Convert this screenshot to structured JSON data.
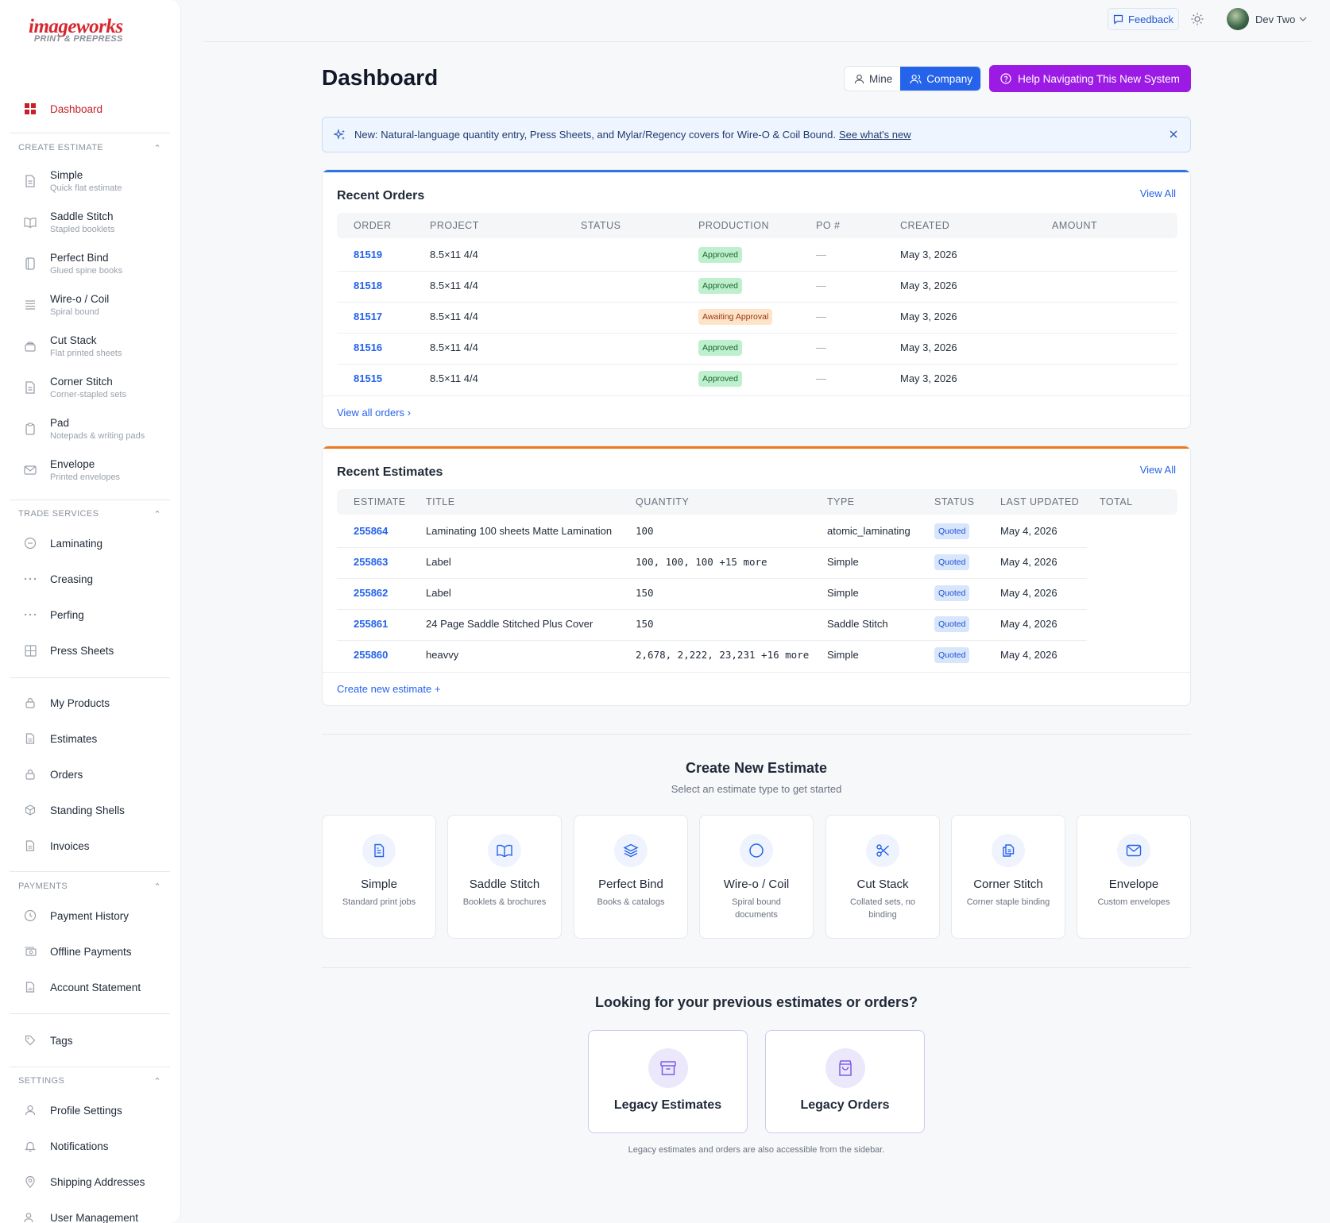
{
  "brand": {
    "line1": "imageworks",
    "line2": "PRINT & PREPRESS"
  },
  "sidebar": {
    "dashboard": "Dashboard",
    "create_estimate": {
      "header": "CREATE ESTIMATE",
      "items": [
        {
          "label": "Simple",
          "sub": "Quick flat estimate"
        },
        {
          "label": "Saddle Stitch",
          "sub": "Stapled booklets"
        },
        {
          "label": "Perfect Bind",
          "sub": "Glued spine books"
        },
        {
          "label": "Wire-o / Coil",
          "sub": "Spiral bound"
        },
        {
          "label": "Cut Stack",
          "sub": "Flat printed sheets"
        },
        {
          "label": "Corner Stitch",
          "sub": "Corner-stapled sets"
        },
        {
          "label": "Pad",
          "sub": "Notepads & writing pads"
        },
        {
          "label": "Envelope",
          "sub": "Printed envelopes"
        }
      ]
    },
    "trade_services": {
      "header": "TRADE SERVICES",
      "items": [
        {
          "label": "Laminating"
        },
        {
          "label": "Creasing"
        },
        {
          "label": "Perfing"
        },
        {
          "label": "Press Sheets"
        }
      ]
    },
    "main_links": [
      {
        "label": "My Products"
      },
      {
        "label": "Estimates"
      },
      {
        "label": "Orders"
      },
      {
        "label": "Standing Shells"
      },
      {
        "label": "Invoices"
      }
    ],
    "payments": {
      "header": "PAYMENTS",
      "items": [
        {
          "label": "Payment History"
        },
        {
          "label": "Offline Payments"
        },
        {
          "label": "Account Statement"
        }
      ]
    },
    "tags": "Tags",
    "settings": {
      "header": "SETTINGS",
      "items": [
        {
          "label": "Profile Settings"
        },
        {
          "label": "Notifications"
        },
        {
          "label": "Shipping Addresses"
        },
        {
          "label": "User Management"
        }
      ]
    }
  },
  "topbar": {
    "feedback": "Feedback",
    "user_name": "Dev Two"
  },
  "header": {
    "title": "Dashboard",
    "toggle_mine": "Mine",
    "toggle_company": "Company",
    "help": "Help Navigating This New System"
  },
  "banner": {
    "text": "New: Natural-language quantity entry, Press Sheets, and Mylar/Regency covers for Wire-O & Coil Bound.",
    "link": "See what's new"
  },
  "recent_orders": {
    "title": "Recent Orders",
    "view_all": "View All",
    "columns": [
      "ORDER",
      "PROJECT",
      "STATUS",
      "PRODUCTION",
      "PO #",
      "CREATED",
      "AMOUNT"
    ],
    "rows": [
      {
        "order": "81519",
        "project": "8.5×11 4/4",
        "production": "Approved",
        "po": "—",
        "created": "May 3, 2026"
      },
      {
        "order": "81518",
        "project": "8.5×11 4/4",
        "production": "Approved",
        "po": "—",
        "created": "May 3, 2026"
      },
      {
        "order": "81517",
        "project": "8.5×11 4/4",
        "production": "Awaiting Approval",
        "po": "—",
        "created": "May 3, 2026"
      },
      {
        "order": "81516",
        "project": "8.5×11 4/4",
        "production": "Approved",
        "po": "—",
        "created": "May 3, 2026"
      },
      {
        "order": "81515",
        "project": "8.5×11 4/4",
        "production": "Approved",
        "po": "—",
        "created": "May 3, 2026"
      }
    ],
    "footer": "View all orders ›"
  },
  "recent_estimates": {
    "title": "Recent Estimates",
    "view_all": "View All",
    "columns": [
      "ESTIMATE",
      "TITLE",
      "QUANTITY",
      "TYPE",
      "STATUS",
      "LAST UPDATED",
      "TOTAL"
    ],
    "rows": [
      {
        "id": "255864",
        "title": "Laminating 100 sheets Matte Lamination",
        "qty": "100",
        "type": "atomic_laminating",
        "status": "Quoted",
        "updated": "May 4, 2026"
      },
      {
        "id": "255863",
        "title": "Label",
        "qty": "100, 100, 100 +15 more",
        "type": "Simple",
        "status": "Quoted",
        "updated": "May 4, 2026"
      },
      {
        "id": "255862",
        "title": "Label",
        "qty": "150",
        "type": "Simple",
        "status": "Quoted",
        "updated": "May 4, 2026"
      },
      {
        "id": "255861",
        "title": "24 Page Saddle Stitched Plus Cover",
        "qty": "150",
        "type": "Saddle Stitch",
        "status": "Quoted",
        "updated": "May 4, 2026"
      },
      {
        "id": "255860",
        "title": "heavvy",
        "qty": "2,678, 2,222, 23,231 +16 more",
        "type": "Simple",
        "status": "Quoted",
        "updated": "May 4, 2026"
      }
    ],
    "footer": "Create new estimate +"
  },
  "create_new": {
    "title": "Create New Estimate",
    "subtitle": "Select an estimate type to get started",
    "types": [
      {
        "label": "Simple",
        "sub": "Standard print jobs",
        "icon": "document-icon"
      },
      {
        "label": "Saddle Stitch",
        "sub": "Booklets & brochures",
        "icon": "book-open-icon"
      },
      {
        "label": "Perfect Bind",
        "sub": "Books & catalogs",
        "icon": "layers-icon"
      },
      {
        "label": "Wire-o / Coil",
        "sub": "Spiral bound documents",
        "icon": "circle-icon"
      },
      {
        "label": "Cut Stack",
        "sub": "Collated sets, no binding",
        "icon": "scissors-icon"
      },
      {
        "label": "Corner Stitch",
        "sub": "Corner staple binding",
        "icon": "documents-icon"
      },
      {
        "label": "Envelope",
        "sub": "Custom envelopes",
        "icon": "mail-icon"
      }
    ]
  },
  "legacy": {
    "title": "Looking for your previous estimates or orders?",
    "estimates": "Legacy Estimates",
    "orders": "Legacy Orders",
    "note": "Legacy estimates and orders are also accessible from the sidebar."
  },
  "colors": {
    "accent_blue": "#2563eb",
    "help_purple": "#9b1be5",
    "brand_red": "#d7262e",
    "orders_top": "#2f74e6",
    "estimates_top": "#ee7a1e"
  }
}
